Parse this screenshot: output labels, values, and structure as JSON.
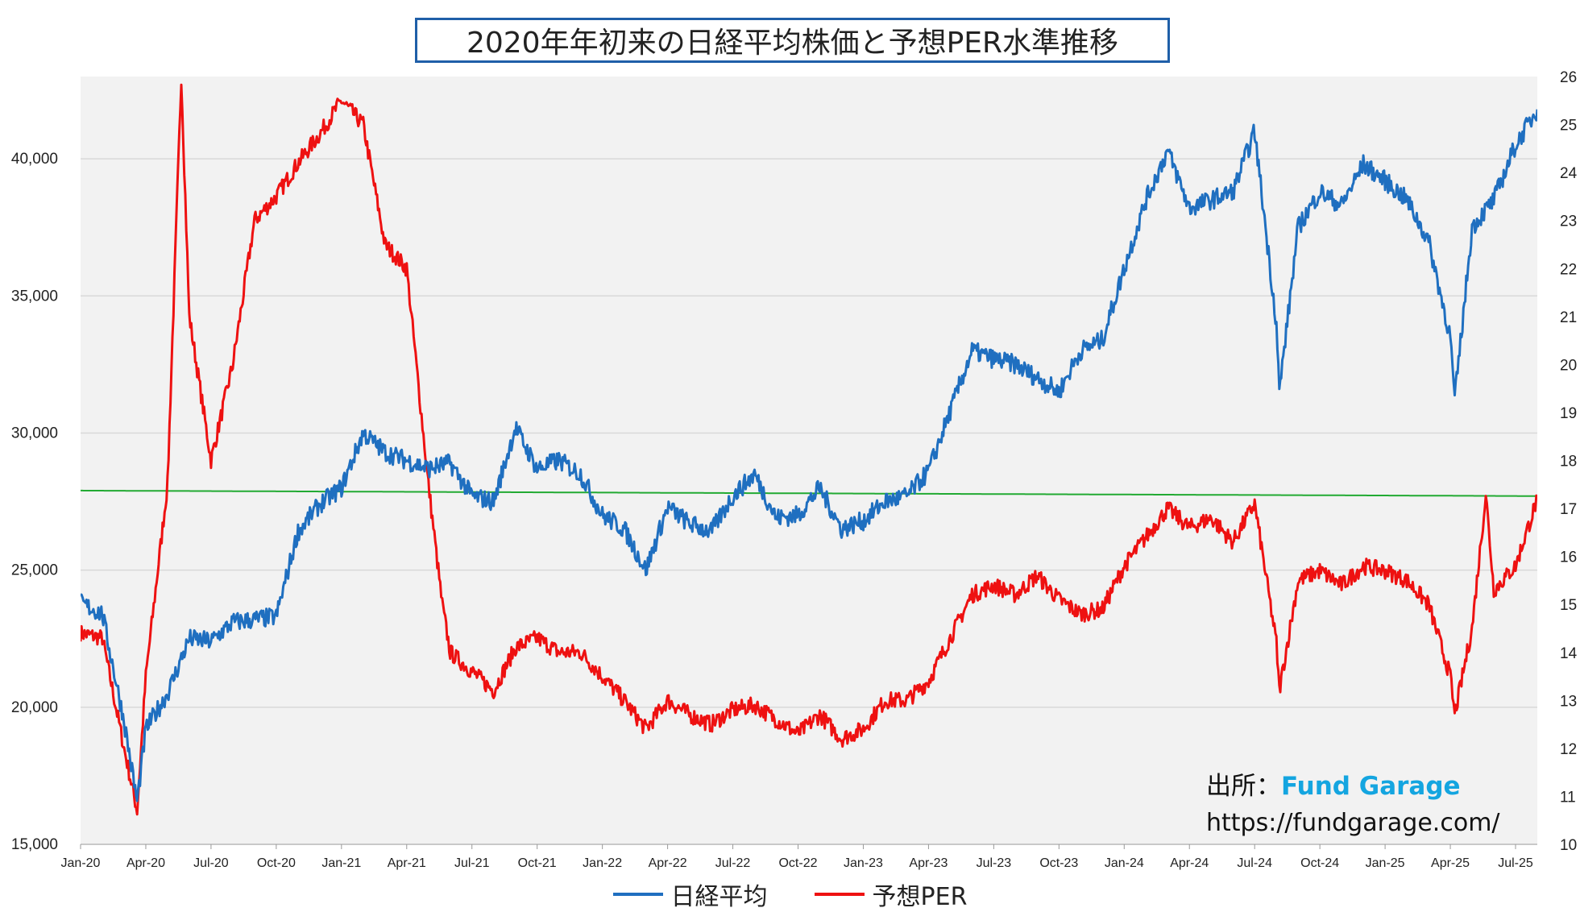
{
  "chart_data": {
    "type": "line",
    "title": "2020年年初来の日経平均株価と予想PER水準推移",
    "x_labels": [
      "Jan-20",
      "Apr-20",
      "Jul-20",
      "Oct-20",
      "Jan-21",
      "Apr-21",
      "Jul-21",
      "Oct-21",
      "Jan-22",
      "Apr-22",
      "Jul-22",
      "Oct-22",
      "Jan-23",
      "Apr-23",
      "Jul-23",
      "Oct-23",
      "Jan-24",
      "Apr-24",
      "Jul-24",
      "Oct-24",
      "Jan-25",
      "Apr-25",
      "Jul-25"
    ],
    "x_range": [
      "2020-01",
      "2025-08"
    ],
    "y_left": {
      "min": 15000,
      "max": 43000,
      "ticks": [
        "15,000",
        "20,000",
        "25,000",
        "30,000",
        "35,000",
        "40,000"
      ],
      "tick_values": [
        15000,
        20000,
        25000,
        30000,
        35000,
        40000
      ]
    },
    "y_right": {
      "min": 10,
      "max": 26,
      "ticks": [
        "10",
        "11",
        "12",
        "13",
        "14",
        "15",
        "16",
        "17",
        "18",
        "19",
        "20",
        "21",
        "22",
        "23",
        "24",
        "25",
        "26"
      ],
      "tick_values": [
        10,
        11,
        12,
        13,
        14,
        15,
        16,
        17,
        18,
        19,
        20,
        21,
        22,
        23,
        24,
        25,
        26
      ]
    },
    "grid": "horizontal",
    "legend_position": "bottom",
    "series": [
      {
        "name": "日経平均",
        "axis": "left",
        "color": "#1f6fc0",
        "points": [
          [
            "2020-01",
            23800
          ],
          [
            "2020-02",
            23400
          ],
          [
            "2020-03",
            19500
          ],
          [
            "2020-03-19",
            16550
          ],
          [
            "2020-04",
            19200
          ],
          [
            "2020-05",
            20500
          ],
          [
            "2020-06",
            22500
          ],
          [
            "2020-07",
            22400
          ],
          [
            "2020-08",
            23100
          ],
          [
            "2020-09",
            23200
          ],
          [
            "2020-10",
            23300
          ],
          [
            "2020-11",
            26400
          ],
          [
            "2020-12",
            27400
          ],
          [
            "2021-01",
            28000
          ],
          [
            "2021-02",
            30000
          ],
          [
            "2021-03",
            29300
          ],
          [
            "2021-04",
            29000
          ],
          [
            "2021-05",
            28700
          ],
          [
            "2021-06",
            28900
          ],
          [
            "2021-07",
            27700
          ],
          [
            "2021-08",
            27500
          ],
          [
            "2021-09",
            30200
          ],
          [
            "2021-10",
            28700
          ],
          [
            "2021-11",
            29000
          ],
          [
            "2021-12",
            28500
          ],
          [
            "2022-01",
            27000
          ],
          [
            "2022-02",
            26500
          ],
          [
            "2022-03",
            25000
          ],
          [
            "2022-04",
            27300
          ],
          [
            "2022-05",
            26700
          ],
          [
            "2022-06",
            26400
          ],
          [
            "2022-07",
            27700
          ],
          [
            "2022-08",
            28500
          ],
          [
            "2022-09",
            26900
          ],
          [
            "2022-10",
            27000
          ],
          [
            "2022-11",
            28000
          ],
          [
            "2022-12",
            26500
          ],
          [
            "2023-01",
            26800
          ],
          [
            "2023-02",
            27500
          ],
          [
            "2023-03",
            27700
          ],
          [
            "2023-04",
            28600
          ],
          [
            "2023-05",
            30800
          ],
          [
            "2023-06",
            33000
          ],
          [
            "2023-07",
            32700
          ],
          [
            "2023-08",
            32500
          ],
          [
            "2023-09",
            32000
          ],
          [
            "2023-10",
            31500
          ],
          [
            "2023-11",
            33000
          ],
          [
            "2023-12",
            33400
          ],
          [
            "2024-01",
            36000
          ],
          [
            "2024-02",
            38500
          ],
          [
            "2024-03",
            40300
          ],
          [
            "2024-04",
            38200
          ],
          [
            "2024-05",
            38500
          ],
          [
            "2024-06",
            38800
          ],
          [
            "2024-07",
            41000
          ],
          [
            "2024-08",
            34000
          ],
          [
            "2024-08-05",
            31500
          ],
          [
            "2024-09",
            37500
          ],
          [
            "2024-10",
            38800
          ],
          [
            "2024-11",
            38300
          ],
          [
            "2024-12",
            39800
          ],
          [
            "2025-01",
            39200
          ],
          [
            "2025-02",
            38500
          ],
          [
            "2025-03",
            37000
          ],
          [
            "2025-04",
            33500
          ],
          [
            "2025-04-07",
            31200
          ],
          [
            "2025-05",
            37500
          ],
          [
            "2025-06",
            38500
          ],
          [
            "2025-07",
            40500
          ],
          [
            "2025-08",
            41800
          ]
        ]
      },
      {
        "name": "予想PER",
        "axis": "right",
        "color": "#ee1111",
        "points": [
          [
            "2020-01",
            14.4
          ],
          [
            "2020-02",
            14.3
          ],
          [
            "2020-03",
            12.0
          ],
          [
            "2020-03-19",
            10.7
          ],
          [
            "2020-04",
            13.5
          ],
          [
            "2020-05",
            17.5
          ],
          [
            "2020-05-20",
            26.0
          ],
          [
            "2020-06",
            21.0
          ],
          [
            "2020-07",
            18.0
          ],
          [
            "2020-08",
            20.0
          ],
          [
            "2020-09",
            23.0
          ],
          [
            "2020-10",
            23.5
          ],
          [
            "2020-11",
            24.2
          ],
          [
            "2020-12",
            24.8
          ],
          [
            "2021-01",
            25.5
          ],
          [
            "2021-02",
            25.0
          ],
          [
            "2021-03",
            22.5
          ],
          [
            "2021-04",
            22.0
          ],
          [
            "2021-05",
            17.5
          ],
          [
            "2021-05-20",
            15.0
          ],
          [
            "2021-06",
            14.0
          ],
          [
            "2021-07",
            13.6
          ],
          [
            "2021-08",
            13.2
          ],
          [
            "2021-09",
            14.1
          ],
          [
            "2021-10",
            14.3
          ],
          [
            "2021-11",
            14.0
          ],
          [
            "2021-12",
            14.0
          ],
          [
            "2022-01",
            13.5
          ],
          [
            "2022-02",
            13.0
          ],
          [
            "2022-03",
            12.4
          ],
          [
            "2022-04",
            13.0
          ],
          [
            "2022-05",
            12.7
          ],
          [
            "2022-06",
            12.5
          ],
          [
            "2022-07",
            12.8
          ],
          [
            "2022-08",
            12.9
          ],
          [
            "2022-09",
            12.6
          ],
          [
            "2022-10",
            12.3
          ],
          [
            "2022-11",
            12.7
          ],
          [
            "2022-12",
            12.2
          ],
          [
            "2023-01",
            12.4
          ],
          [
            "2023-02",
            13.0
          ],
          [
            "2023-03",
            13.0
          ],
          [
            "2023-04",
            13.4
          ],
          [
            "2023-05",
            14.3
          ],
          [
            "2023-06",
            15.2
          ],
          [
            "2023-07",
            15.4
          ],
          [
            "2023-08",
            15.2
          ],
          [
            "2023-09",
            15.6
          ],
          [
            "2023-10",
            15.1
          ],
          [
            "2023-11",
            14.8
          ],
          [
            "2023-12",
            14.9
          ],
          [
            "2024-01",
            15.8
          ],
          [
            "2024-02",
            16.4
          ],
          [
            "2024-03",
            17.0
          ],
          [
            "2024-04",
            16.6
          ],
          [
            "2024-05",
            16.8
          ],
          [
            "2024-06",
            16.3
          ],
          [
            "2024-07",
            17.1
          ],
          [
            "2024-08",
            14.2
          ],
          [
            "2024-08-05",
            13.2
          ],
          [
            "2024-09",
            15.5
          ],
          [
            "2024-10",
            15.7
          ],
          [
            "2024-11",
            15.4
          ],
          [
            "2024-12",
            15.8
          ],
          [
            "2025-01",
            15.7
          ],
          [
            "2025-02",
            15.5
          ],
          [
            "2025-03",
            15.0
          ],
          [
            "2025-04",
            13.5
          ],
          [
            "2025-04-07",
            12.7
          ],
          [
            "2025-05",
            14.5
          ],
          [
            "2025-05-20",
            17.3
          ],
          [
            "2025-06",
            15.3
          ],
          [
            "2025-07",
            15.8
          ],
          [
            "2025-08",
            17.2
          ]
        ]
      },
      {
        "name": "",
        "axis": "left",
        "color": "#22aa33",
        "type": "trend",
        "points": [
          [
            "2020-01",
            27900
          ],
          [
            "2025-08",
            27700
          ]
        ]
      }
    ]
  },
  "source": {
    "label": "出所：",
    "name": "Fund Garage",
    "url": "https://fundgarage.com/"
  },
  "colors": {
    "plot_background": "#f2f2f2",
    "gridline": "#d9d9d9",
    "title_border": "#1f5fa8",
    "source_brand": "#14a5e0"
  }
}
